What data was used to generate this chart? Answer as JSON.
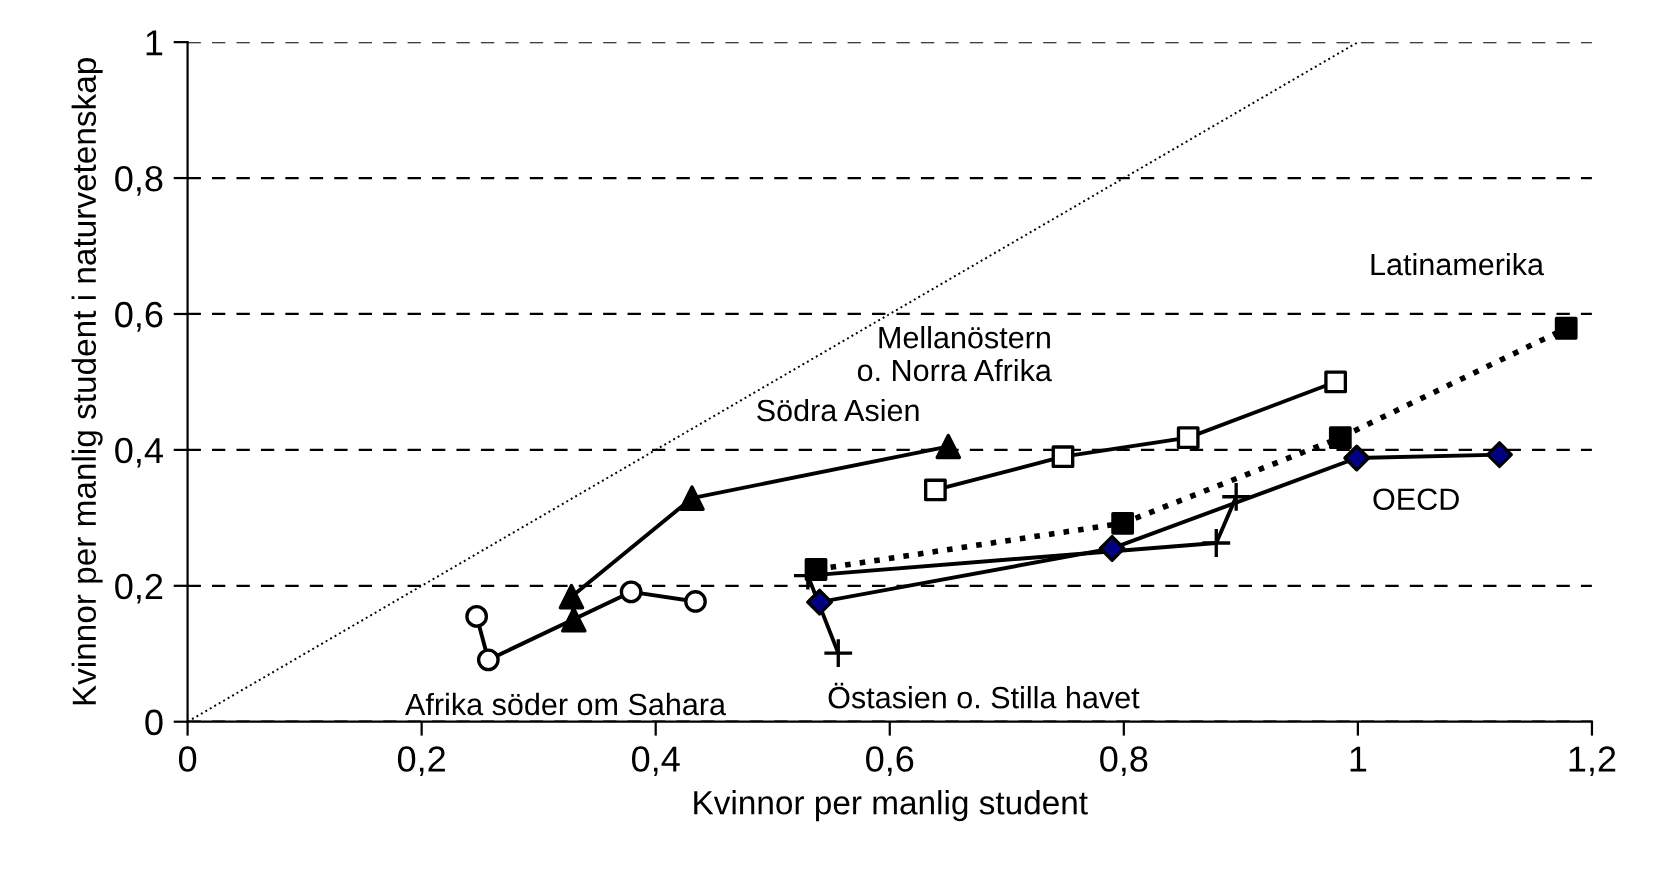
{
  "chart_data": {
    "type": "line",
    "xlabel": "Kvinnor per manlig student",
    "ylabel": "Kvinnor per manlig student i naturvetenskap",
    "xlim": [
      0,
      1.2
    ],
    "xticks": [
      {
        "value": 0,
        "label": "0"
      },
      {
        "value": 0.2,
        "label": "0,2"
      },
      {
        "value": 0.4,
        "label": "0,4"
      },
      {
        "value": 0.6,
        "label": "0,6"
      },
      {
        "value": 0.8,
        "label": "0,8"
      },
      {
        "value": 1,
        "label": "1"
      },
      {
        "value": 1.2,
        "label": "1,2"
      }
    ],
    "ylim": [
      0,
      1
    ],
    "yticks": [
      {
        "value": 0,
        "label": "0"
      },
      {
        "value": 0.2,
        "label": "0,2"
      },
      {
        "value": 0.4,
        "label": "0,4"
      },
      {
        "value": 0.6,
        "label": "0,6"
      },
      {
        "value": 0.8,
        "label": "0,8"
      },
      {
        "value": 1,
        "label": "1"
      }
    ],
    "grid": "y",
    "legend": false,
    "series": [
      {
        "color": "#000000",
        "x": [
          0,
          1
        ],
        "values": [
          0,
          1
        ],
        "line_style": "dotted",
        "marker": "none"
      },
      {
        "color": "#000000",
        "x": [
          0.247,
          0.257,
          0.379,
          0.434
        ],
        "values": [
          0.155,
          0.091,
          0.191,
          0.177
        ],
        "marker": "circle",
        "colors": [
          "#ffffff",
          "#ffffff",
          "#ffffff",
          "#ffffff"
        ]
      },
      {
        "color": "#000000",
        "x": [
          0.33,
          0.328,
          0.431,
          0.65
        ],
        "values": [
          0.15,
          0.184,
          0.329,
          0.405
        ],
        "marker": "triangle",
        "colors": [
          "#000000",
          "#000000",
          "#000000",
          "#000000"
        ]
      },
      {
        "color": "#000000",
        "x": [
          0.556,
          0.53,
          0.879,
          0.896
        ],
        "values": [
          0.101,
          0.215,
          0.263,
          0.331
        ],
        "marker": "cross"
      },
      {
        "color": "#000000",
        "x": [
          0.537,
          0.799,
          0.985,
          1.178
        ],
        "values": [
          0.224,
          0.292,
          0.418,
          0.579
        ],
        "marker": "square",
        "line_style": "dotted",
        "colors": [
          "#000000",
          "#000000",
          "#000000",
          "#000000"
        ]
      },
      {
        "color": "#000000",
        "x": [
          0.639,
          0.748,
          0.855,
          0.981
        ],
        "values": [
          0.341,
          0.39,
          0.418,
          0.5
        ],
        "marker": "square",
        "colors": [
          "#ffffff",
          "#ffffff",
          "#ffffff",
          "#ffffff"
        ]
      },
      {
        "color": "#000000",
        "x": [
          0.54,
          0.79,
          0.999,
          1.121
        ],
        "values": [
          0.176,
          0.255,
          0.388,
          0.393
        ],
        "marker": "diamond",
        "colors": [
          "#000080",
          "#000080",
          "#000080",
          "#000080"
        ]
      }
    ],
    "annotations": [
      {
        "text": "Afrika söder om Sahara",
        "x": 0.257,
        "y": 0.091
      },
      {
        "text": "Södra Asien",
        "x": 0.65,
        "y": 0.405
      },
      {
        "text": "Östasien o. Stilla havet",
        "x": 0.556,
        "y": 0.101
      },
      {
        "text": "Mellanöstern\no. Norra Afrika",
        "x": 0.748,
        "y": 0.39
      },
      {
        "text": "Latinamerika",
        "x": 1.178,
        "y": 0.579
      },
      {
        "text": "OECD",
        "x": 1.121,
        "y": 0.393
      }
    ]
  }
}
